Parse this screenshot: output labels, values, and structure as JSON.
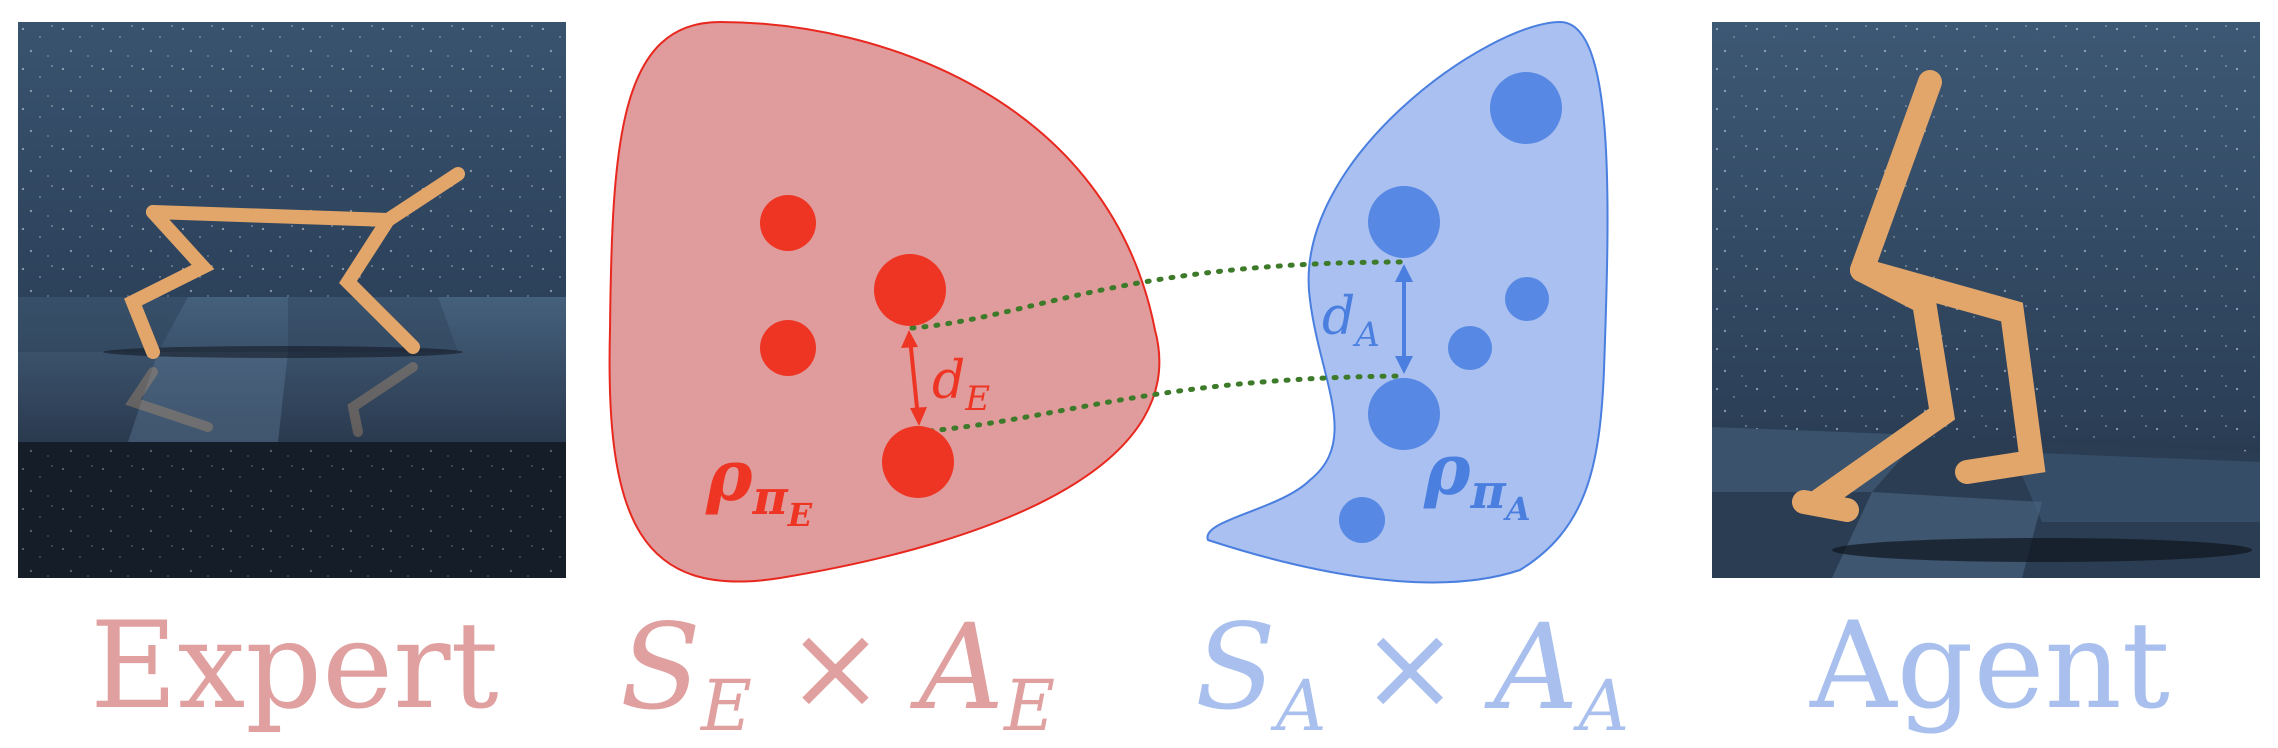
{
  "captions": {
    "expert": "Expert",
    "agent": "Agent"
  },
  "spaces": {
    "expert": {
      "s": "S",
      "s_sub": "E",
      "times": "×",
      "a": "A",
      "a_sub": "E"
    },
    "agent": {
      "s": "S",
      "s_sub": "A",
      "times": "×",
      "a": "A",
      "a_sub": "A"
    }
  },
  "labels": {
    "d_expert": {
      "main": "d",
      "sub": "E"
    },
    "d_agent": {
      "main": "d",
      "sub": "A"
    },
    "rho_expert": {
      "main": "ρ",
      "sub": "π",
      "subsub": "E"
    },
    "rho_agent": {
      "main": "ρ",
      "sub": "π",
      "subsub": "A"
    }
  },
  "colors": {
    "expert_fill": "#e09c9c",
    "expert_stroke": "#e8281f",
    "expert_point": "#ee3524",
    "agent_fill": "#a9c0f0",
    "agent_stroke": "#4a7fe0",
    "agent_point": "#5688e4",
    "link": "#3d7a2a",
    "caption_expert": "#e0a0a0",
    "caption_agent": "#a9c0ee",
    "robot": "#e3a66a"
  }
}
